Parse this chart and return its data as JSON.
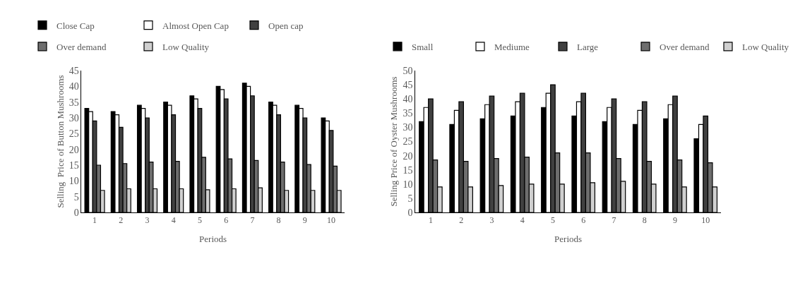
{
  "chart_data": [
    {
      "type": "bar",
      "xlabel": "Periods",
      "ylabel": "Selling  Price of Button Mushrooms",
      "categories": [
        "1",
        "2",
        "3",
        "4",
        "5",
        "6",
        "7",
        "8",
        "9",
        "10"
      ],
      "ylim": [
        0,
        45
      ],
      "yticks": [
        0,
        5,
        10,
        15,
        20,
        25,
        30,
        35,
        40,
        45
      ],
      "legend": "top",
      "series": [
        {
          "name": "Close Cap",
          "color": "#000000",
          "values": [
            33,
            32,
            34,
            35,
            37,
            40,
            41,
            35,
            34,
            30
          ]
        },
        {
          "name": "Almost Open Cap",
          "color": "#ffffff",
          "values": [
            32,
            31,
            33,
            34,
            36,
            39,
            40,
            34,
            33,
            29
          ]
        },
        {
          "name": "Open cap",
          "color": "#404040",
          "values": [
            29,
            27,
            30,
            31,
            33,
            36,
            37,
            31,
            30,
            26
          ]
        },
        {
          "name": "Over demand",
          "color": "#6e6e6e",
          "values": [
            15,
            15.5,
            16,
            16.2,
            17.5,
            17,
            16.5,
            16,
            15.2,
            14.7
          ]
        },
        {
          "name": "Low Quality",
          "color": "#d0d0d0",
          "values": [
            7,
            7.5,
            7.5,
            7.5,
            7.2,
            7.5,
            7.8,
            7,
            7,
            7
          ]
        }
      ]
    },
    {
      "type": "bar",
      "xlabel": "Periods",
      "ylabel": "Selling Price of Oyster Mushrooms",
      "categories": [
        "1",
        "2",
        "3",
        "4",
        "5",
        "6",
        "7",
        "8",
        "9",
        "10"
      ],
      "ylim": [
        0,
        50
      ],
      "yticks": [
        0,
        5,
        10,
        15,
        20,
        25,
        30,
        35,
        40,
        45,
        50
      ],
      "legend": "top",
      "series": [
        {
          "name": "Small",
          "color": "#000000",
          "values": [
            32,
            31,
            33,
            34,
            37,
            34,
            32,
            31,
            33,
            26
          ]
        },
        {
          "name": "Mediume",
          "color": "#ffffff",
          "values": [
            37,
            36,
            38,
            39,
            42,
            39,
            37,
            36,
            38,
            31
          ]
        },
        {
          "name": "Large",
          "color": "#404040",
          "values": [
            40,
            39,
            41,
            42,
            45,
            42,
            40,
            39,
            41,
            34
          ]
        },
        {
          "name": "Over demand",
          "color": "#6e6e6e",
          "values": [
            18.5,
            18,
            19,
            19.5,
            21,
            21,
            19,
            18,
            18.5,
            17.5
          ]
        },
        {
          "name": "Low Quality",
          "color": "#d0d0d0",
          "values": [
            9,
            9,
            9.5,
            10,
            10,
            10.5,
            11,
            10,
            9,
            9
          ]
        }
      ]
    }
  ]
}
